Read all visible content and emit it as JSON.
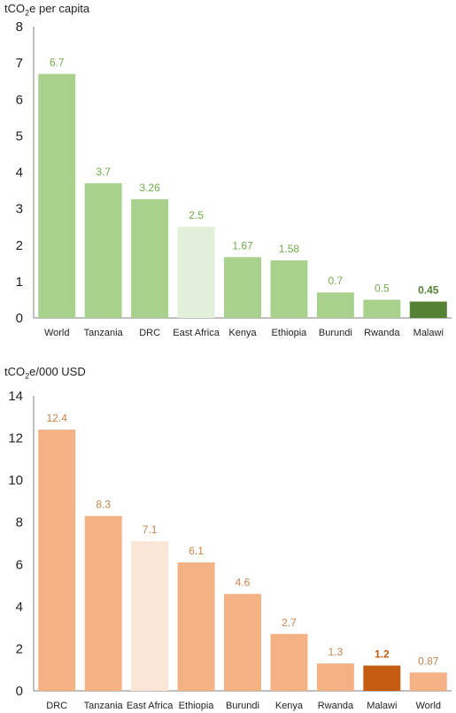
{
  "chart_data": [
    {
      "type": "bar",
      "ylabel_prefix": "tCO",
      "ylabel_sub": "2",
      "ylabel_suffix": "e per capita",
      "categories": [
        "World",
        "Tanzania",
        "DRC",
        "East Africa",
        "Kenya",
        "Ethiopia",
        "Burundi",
        "Rwanda",
        "Malawi"
      ],
      "values": [
        6.7,
        3.7,
        3.26,
        2.5,
        1.67,
        1.58,
        0.7,
        0.5,
        0.45
      ],
      "labels": [
        "6.7",
        "3.7",
        "3.26",
        "2.5",
        "1.67",
        "1.58",
        "0.7",
        "0.5",
        "0.45"
      ],
      "yticks": [
        "0",
        "1",
        "2",
        "3",
        "4",
        "5",
        "6",
        "7",
        "8"
      ],
      "ylim": [
        0,
        8
      ],
      "grid": false,
      "colors": {
        "default": "#a9d18e",
        "highlight": "#548235",
        "light": "#e2efda",
        "label": "#70ad47",
        "highlight_label": "#548235"
      },
      "highlight_index": 8,
      "light_index": 3
    },
    {
      "type": "bar",
      "ylabel_prefix": "tCO",
      "ylabel_sub": "2",
      "ylabel_suffix": "e/000 USD",
      "categories": [
        "DRC",
        "Tanzania",
        "East Africa",
        "Ethiopia",
        "Burundi",
        "Kenya",
        "Rwanda",
        "Malawi",
        "World"
      ],
      "values": [
        12.4,
        8.3,
        7.1,
        6.1,
        4.6,
        2.7,
        1.3,
        1.2,
        0.87
      ],
      "labels": [
        "12.4",
        "8.3",
        "7.1",
        "6.1",
        "4.6",
        "2.7",
        "1.3",
        "1.2",
        "0.87"
      ],
      "yticks": [
        "0",
        "2",
        "4",
        "6",
        "8",
        "10",
        "12",
        "14"
      ],
      "ylim": [
        0,
        14
      ],
      "grid": false,
      "colors": {
        "default": "#f4b183",
        "highlight": "#c55a11",
        "light": "#fbe5d6",
        "label": "#c9834a",
        "highlight_label": "#c55a11"
      },
      "highlight_index": 7,
      "light_index": 2
    }
  ]
}
